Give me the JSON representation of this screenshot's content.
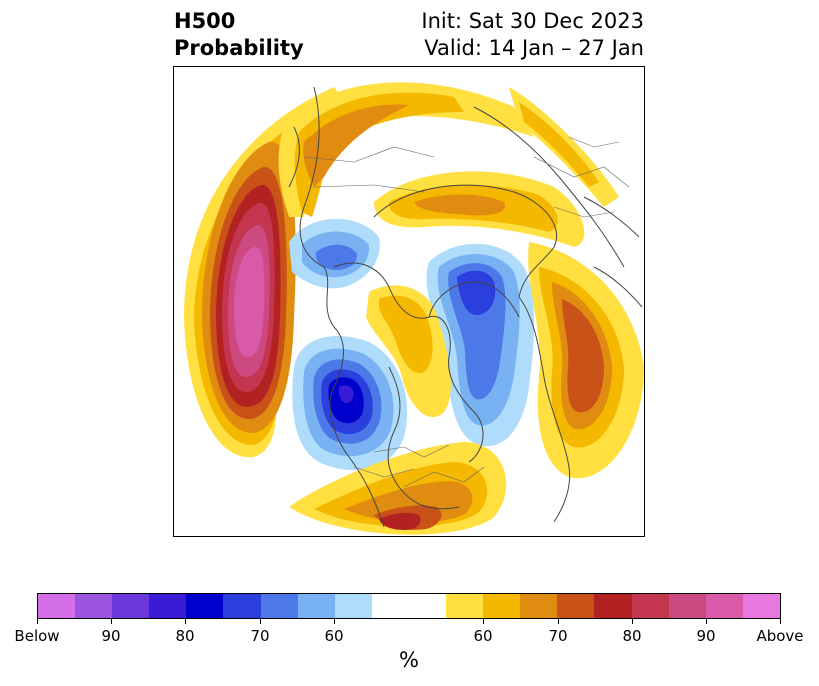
{
  "header": {
    "title_line1": "H500",
    "title_line2": "Probability",
    "init": "Init: Sat 30 Dec 2023",
    "valid": "Valid: 14 Jan – 27 Jan"
  },
  "colorbar": {
    "unit": "%",
    "below_colors": [
      "#d46fe8",
      "#9b55e0",
      "#6a37da",
      "#3a1cd6",
      "#0000cc",
      "#2a3fdc",
      "#4d78e8",
      "#78b2f2",
      "#aedcfa"
    ],
    "neutral_color": "#ffffff",
    "above_colors": [
      "#ffe040",
      "#f5b800",
      "#e08c10",
      "#c85218",
      "#b22222",
      "#c43650",
      "#cc4a80",
      "#d85aa8",
      "#e878e0"
    ],
    "tick_labels": [
      "Below",
      "90",
      "80",
      "70",
      "60",
      "60",
      "70",
      "80",
      "90",
      "Above"
    ]
  }
}
